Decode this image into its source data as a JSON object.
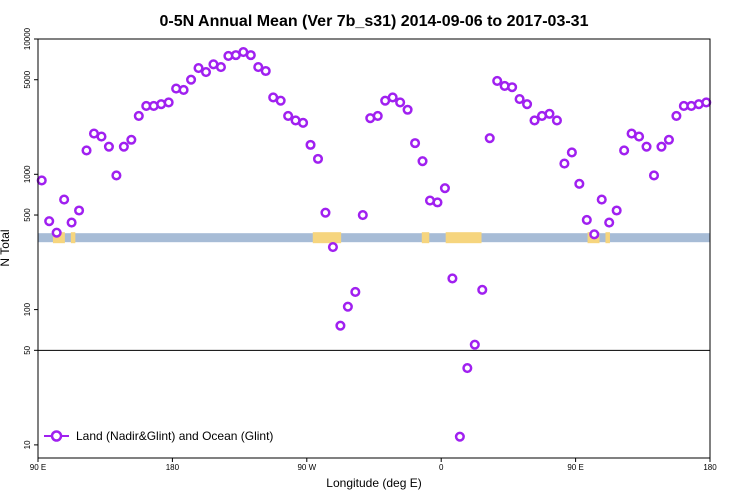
{
  "chart_data": {
    "type": "scatter",
    "title": "0-5N Annual Mean (Ver 7b_s31)   2014-09-06 to 2017-03-31",
    "xlabel": "Longitude (deg E)",
    "ylabel": "N Total",
    "x_axis": {
      "range_deg_east": [
        90,
        450
      ],
      "ticks": [
        {
          "value": 90,
          "label": "90 E"
        },
        {
          "value": 180,
          "label": "180"
        },
        {
          "value": 270,
          "label": "90 W"
        },
        {
          "value": 360,
          "label": "0"
        },
        {
          "value": 450,
          "label": "90 E"
        },
        {
          "value": 540,
          "label": "180"
        }
      ],
      "xlim": [
        90,
        540
      ]
    },
    "y_axis": {
      "scale": "log",
      "ylim": [
        8,
        10000
      ],
      "ticks": [
        {
          "value": 10,
          "label": "10"
        },
        {
          "value": 50,
          "label": "50"
        },
        {
          "value": 100,
          "label": "100"
        },
        {
          "value": 500,
          "label": "500"
        },
        {
          "value": 1000,
          "label": "1000"
        },
        {
          "value": 5000,
          "label": "5000"
        },
        {
          "value": 10000,
          "label": "10000"
        }
      ]
    },
    "reference_line": {
      "y": 50,
      "color": "#000000"
    },
    "land_ocean_band": {
      "y": 340,
      "ocean_color": "#a7bcd6",
      "land_color": "#f6d57e"
    },
    "legend": {
      "position": "bottom-left",
      "entries": [
        {
          "label": "Land (Nadir&Glint) and Ocean (Glint)",
          "color": "#a020f0"
        }
      ]
    },
    "series": [
      {
        "name": "Land (Nadir&Glint) and Ocean (Glint)",
        "color": "#a020f0",
        "marker": "open-circle",
        "x": [
          92.5,
          97.5,
          102.5,
          107.5,
          112.5,
          117.5,
          122.5,
          127.5,
          132.5,
          137.5,
          142.5,
          147.5,
          152.5,
          157.5,
          162.5,
          167.5,
          172.5,
          177.5,
          182.5,
          187.5,
          192.5,
          197.5,
          202.5,
          207.5,
          212.5,
          217.5,
          222.5,
          227.5,
          232.5,
          237.5,
          242.5,
          247.5,
          252.5,
          257.5,
          262.5,
          267.5,
          272.5,
          277.5,
          282.5,
          287.5,
          292.5,
          297.5,
          302.5,
          307.5,
          312.5,
          317.5,
          322.5,
          327.5,
          332.5,
          337.5,
          342.5,
          347.5,
          352.5,
          357.5,
          362.5,
          367.5,
          372.5,
          377.5,
          382.5,
          387.5,
          392.5,
          397.5,
          402.5,
          407.5,
          412.5,
          417.5,
          422.5,
          427.5,
          432.5,
          437.5,
          442.5,
          447.5,
          452.5,
          457.5,
          462.5,
          467.5,
          472.5,
          477.5,
          482.5,
          487.5,
          492.5,
          497.5,
          502.5,
          507.5,
          512.5,
          517.5,
          522.5,
          527.5,
          532.5,
          537.5
        ],
        "y": [
          900,
          450,
          370,
          650,
          440,
          540,
          1500,
          2000,
          1900,
          1600,
          980,
          1600,
          1800,
          2700,
          3200,
          3200,
          3300,
          3400,
          4300,
          4200,
          5000,
          6100,
          5700,
          6500,
          6200,
          7500,
          7600,
          8000,
          7600,
          6200,
          5800,
          3700,
          3500,
          2700,
          2500,
          2400,
          1650,
          1300,
          520,
          290,
          76,
          105,
          135,
          500,
          2600,
          2700,
          3500,
          3700,
          3400,
          3000,
          1700,
          1250,
          640,
          620,
          790,
          170,
          11.5,
          37,
          55,
          140,
          1850,
          4900,
          4500,
          4400,
          3600,
          3300,
          2500,
          2700,
          2800,
          2500,
          1200,
          1450,
          850,
          460,
          360,
          650,
          440,
          540,
          1500,
          2000,
          1900,
          1600,
          980,
          1600,
          1800,
          2700,
          3200,
          3200,
          3300,
          3400
        ]
      }
    ]
  }
}
